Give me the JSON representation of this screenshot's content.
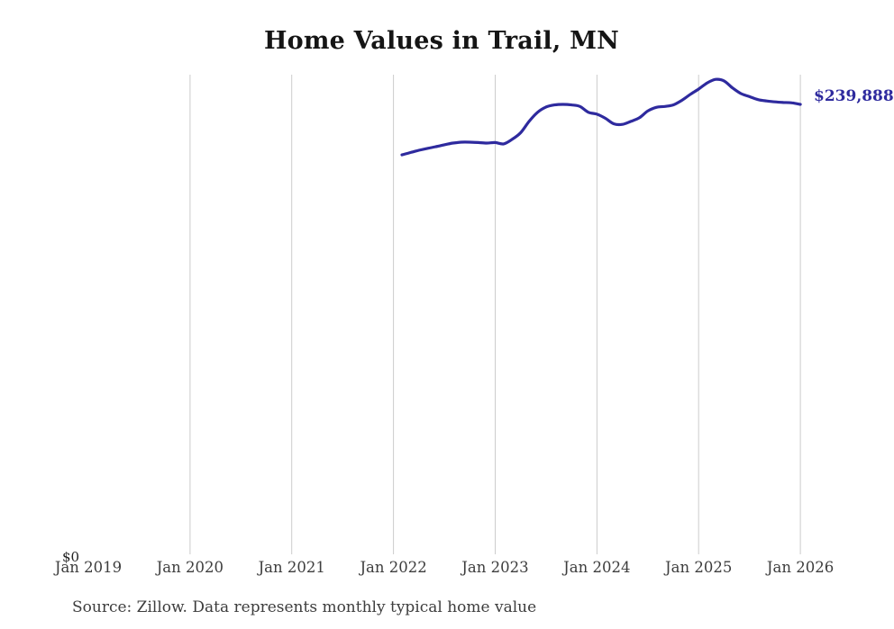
{
  "chart_data": {
    "type": "line",
    "title": "Home Values in Trail, MN",
    "series_name": "Monthly typical home value",
    "x": [
      "2022-02",
      "2022-03",
      "2022-04",
      "2022-05",
      "2022-06",
      "2022-07",
      "2022-08",
      "2022-09",
      "2022-10",
      "2022-11",
      "2022-12",
      "2023-01",
      "2023-02",
      "2023-03",
      "2023-04",
      "2023-05",
      "2023-06",
      "2023-07",
      "2023-08",
      "2023-09",
      "2023-10",
      "2023-11",
      "2023-12",
      "2024-01",
      "2024-02",
      "2024-03",
      "2024-04",
      "2024-05",
      "2024-06",
      "2024-07",
      "2024-08",
      "2024-09",
      "2024-10",
      "2024-11",
      "2024-12",
      "2025-01",
      "2025-02",
      "2025-03",
      "2025-04",
      "2025-05",
      "2025-06",
      "2025-07",
      "2025-08",
      "2025-09",
      "2025-10",
      "2025-11",
      "2025-12",
      "2026-01"
    ],
    "values": [
      213200,
      214400,
      215600,
      216600,
      217500,
      218500,
      219400,
      219900,
      219900,
      219700,
      219400,
      219700,
      219000,
      221400,
      224900,
      230900,
      235700,
      238500,
      239600,
      239900,
      239600,
      238800,
      235700,
      234700,
      232500,
      229600,
      229300,
      230900,
      232800,
      236400,
      238300,
      238800,
      239600,
      242000,
      245100,
      248000,
      251200,
      253100,
      252300,
      248600,
      245600,
      244000,
      242400,
      241700,
      241200,
      240900,
      240700,
      239888
    ],
    "end_label": "$239,888",
    "y_zero_label": "$0",
    "x_tick_labels": [
      "Jan 2019",
      "Jan 2020",
      "Jan 2021",
      "Jan 2022",
      "Jan 2023",
      "Jan 2024",
      "Jan 2025",
      "Jan 2026"
    ],
    "gridline_ticks": [
      false,
      true,
      true,
      true,
      true,
      true,
      true,
      true
    ],
    "ylim": [
      0,
      292000
    ],
    "xlabel": "",
    "ylabel": "",
    "legend": "none",
    "grid": "vertical-only",
    "line_color": "#2e2a9e",
    "gridline_color": "#cccccc",
    "end_label_color": "#2e2a9e",
    "axis_text_color": "#3d3d3d",
    "source": "Source: Zillow. Data represents monthly typical home value"
  }
}
